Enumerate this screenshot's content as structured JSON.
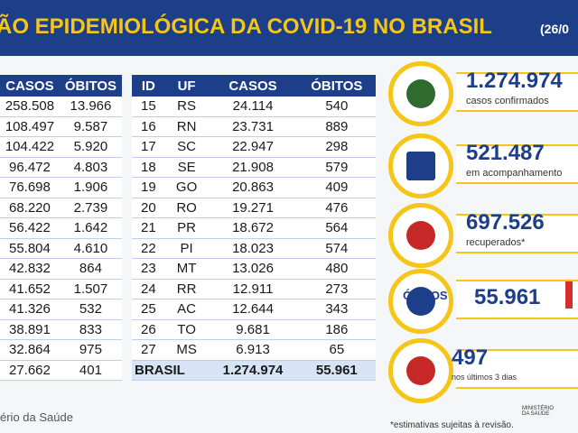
{
  "header": {
    "title": "ÃO EPIDEMIOLÓGICA DA COVID-19 NO BRASIL",
    "date": "(26/0"
  },
  "left_table": {
    "columns": [
      "CASOS",
      "ÓBITOS"
    ],
    "rows": [
      [
        "258.508",
        "13.966"
      ],
      [
        "108.497",
        "9.587"
      ],
      [
        "104.422",
        "5.920"
      ],
      [
        "96.472",
        "4.803"
      ],
      [
        "76.698",
        "1.906"
      ],
      [
        "68.220",
        "2.739"
      ],
      [
        "56.422",
        "1.642"
      ],
      [
        "55.804",
        "4.610"
      ],
      [
        "42.832",
        "864"
      ],
      [
        "41.652",
        "1.507"
      ],
      [
        "41.326",
        "532"
      ],
      [
        "38.891",
        "833"
      ],
      [
        "32.864",
        "975"
      ],
      [
        "27.662",
        "401"
      ]
    ]
  },
  "right_table": {
    "columns": [
      "ID",
      "UF",
      "CASOS",
      "ÓBITOS"
    ],
    "rows": [
      [
        "15",
        "RS",
        "24.114",
        "540"
      ],
      [
        "16",
        "RN",
        "23.731",
        "889"
      ],
      [
        "17",
        "SC",
        "22.947",
        "298"
      ],
      [
        "18",
        "SE",
        "21.908",
        "579"
      ],
      [
        "19",
        "GO",
        "20.863",
        "409"
      ],
      [
        "20",
        "RO",
        "19.271",
        "476"
      ],
      [
        "21",
        "PR",
        "18.672",
        "564"
      ],
      [
        "22",
        "PI",
        "18.023",
        "574"
      ],
      [
        "23",
        "MT",
        "13.026",
        "480"
      ],
      [
        "24",
        "RR",
        "12.911",
        "273"
      ],
      [
        "25",
        "AC",
        "12.644",
        "343"
      ],
      [
        "26",
        "TO",
        "9.681",
        "186"
      ],
      [
        "27",
        "MS",
        "6.913",
        "65"
      ]
    ],
    "total": {
      "label": "BRASIL",
      "casos": "1.274.974",
      "obitos": "55.961"
    }
  },
  "stats": [
    {
      "value": "1.274.974",
      "label": "casos confirmados"
    },
    {
      "value": "521.487",
      "label": "em acompanhamento"
    },
    {
      "value": "697.526",
      "label": "recuperados*"
    },
    {
      "value": "55.961",
      "label": "ÓBITOS"
    },
    {
      "value": "497",
      "label": "nos últimos 3 dias"
    }
  ],
  "footer": {
    "source": "ério da Saúde",
    "note": "*estimativas sujeitas à revisão.",
    "logo": "MINISTÉRIO DA SAÚDE"
  }
}
